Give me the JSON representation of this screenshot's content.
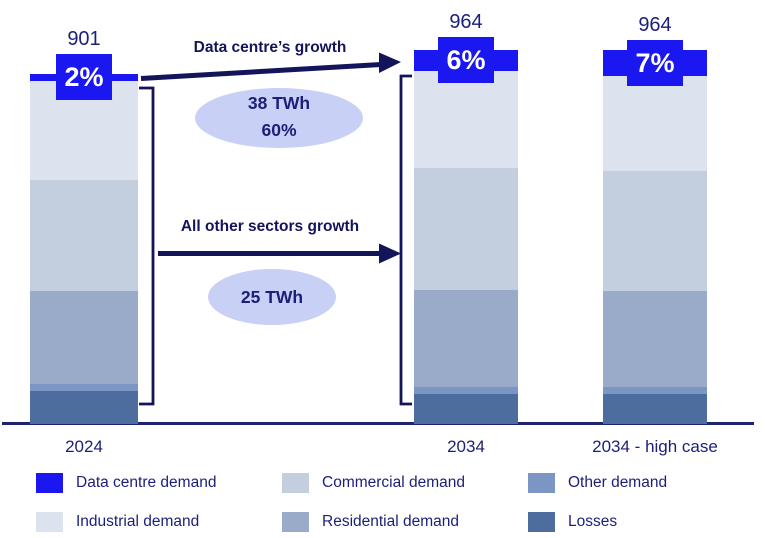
{
  "chart_data": {
    "type": "bar",
    "stacked": true,
    "unit": "TWh",
    "grid": false,
    "legend_position": "bottom",
    "categories": [
      "2024",
      "2034",
      "2034 - high case"
    ],
    "totals": [
      901,
      964,
      964
    ],
    "top_segment_pct_labels": [
      "2%",
      "6%",
      "7%"
    ],
    "series": [
      {
        "name": "Data centre demand",
        "color": "#1a17f0",
        "values": [
          18,
          56,
          67
        ]
      },
      {
        "name": "Industrial demand",
        "color": "#dde3ee",
        "values": [
          255,
          250,
          247
        ]
      },
      {
        "name": "Commercial demand",
        "color": "#c3cede",
        "values": [
          285,
          312,
          308
        ]
      },
      {
        "name": "Residential demand",
        "color": "#99abc9",
        "values": [
          240,
          250,
          246
        ]
      },
      {
        "name": "Other demand",
        "color": "#7b96c4",
        "values": [
          18,
          18,
          18
        ]
      },
      {
        "name": "Losses",
        "color": "#4e6d9f",
        "values": [
          85,
          78,
          78
        ]
      }
    ],
    "legend": [
      {
        "label": "Data centre demand",
        "color": "#1a17f0"
      },
      {
        "label": "Commercial demand",
        "color": "#c3cede"
      },
      {
        "label": "Other demand",
        "color": "#7b96c4"
      },
      {
        "label": "Industrial demand",
        "color": "#dde3ee"
      },
      {
        "label": "Residential demand",
        "color": "#99abc9"
      },
      {
        "label": "Losses",
        "color": "#4e6d9f"
      }
    ],
    "annotations": [
      {
        "label": "Data centre’s growth",
        "bubble_lines": [
          "38 TWh",
          "60%"
        ]
      },
      {
        "label": "All other sectors growth",
        "bubble_lines": [
          "25 TWh"
        ]
      }
    ]
  },
  "colors": {
    "accent_blue": "#1a17f0",
    "navy_text": "#1b1f78",
    "arrow_navy": "#14145a",
    "bubble_fill": "#c9d0f5",
    "axis_line": "#1f2370"
  }
}
